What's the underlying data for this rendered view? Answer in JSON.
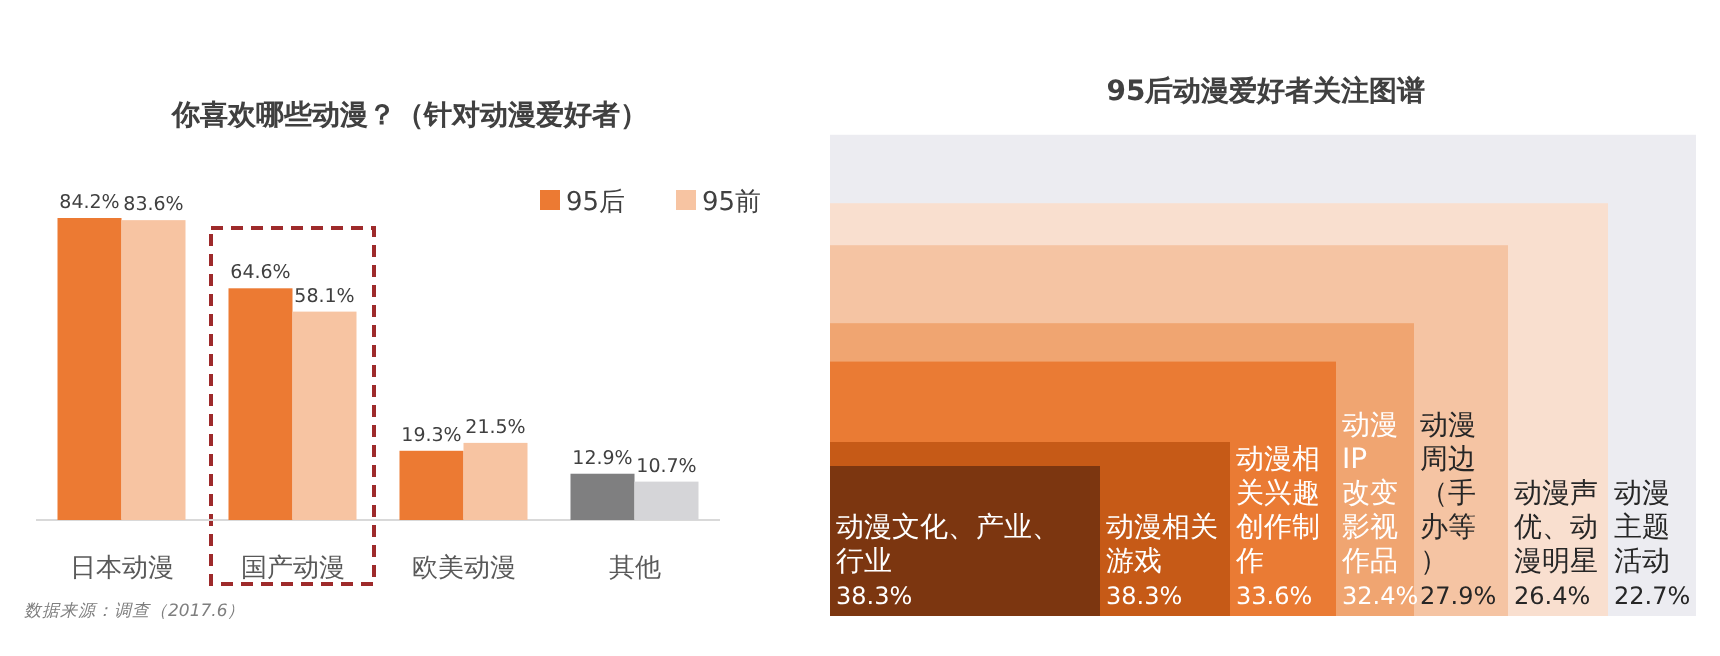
{
  "chart_data": [
    {
      "type": "bar",
      "title": "你喜欢哪些动漫？（针对动漫爱好者）",
      "categories": [
        "日本动漫",
        "国产动漫",
        "欧美动漫",
        "其他"
      ],
      "series": [
        {
          "name": "95后",
          "color": "#ec7a33",
          "colors": [
            "#ec7a33",
            "#ec7a33",
            "#ec7a33",
            "#7f7f80"
          ],
          "values": [
            84.2,
            64.6,
            19.3,
            12.9
          ],
          "value_labels": [
            "84.2%",
            "64.6%",
            "19.3%",
            "12.9%"
          ]
        },
        {
          "name": "95前",
          "color": "#f7c4a2",
          "colors": [
            "#f7c4a2",
            "#f7c4a2",
            "#f7c4a2",
            "#d5d5d8"
          ],
          "values": [
            83.6,
            58.1,
            21.5,
            10.7
          ],
          "value_labels": [
            "83.6%",
            "58.1%",
            "21.5%",
            "10.7%"
          ]
        }
      ],
      "legend": "top right",
      "annotations": [
        "数据来源：调查（2017.6）"
      ]
    },
    {
      "type": "other",
      "title": "95后动漫爱好者关注图谱",
      "categories": [
        "动漫文化、产业、行业",
        "动漫相关游戏",
        "动漫相关兴趣创作制作",
        "动漫IP改变影视作品",
        "动漫周边（手办等）",
        "动漫声优、动漫明星",
        "动漫主题活动"
      ],
      "values": [
        38.3,
        38.3,
        33.6,
        32.4,
        27.9,
        26.4,
        22.7
      ],
      "value_labels": [
        "38.3%",
        "38.3%",
        "33.6%",
        "32.4%",
        "27.9%",
        "26.4%",
        "22.7%"
      ],
      "colors": [
        "#7c3610",
        "#c65a17",
        "#ea7b34",
        "#f0a571",
        "#f5c4a3",
        "#f9dfcf",
        "#ececf1"
      ]
    }
  ]
}
